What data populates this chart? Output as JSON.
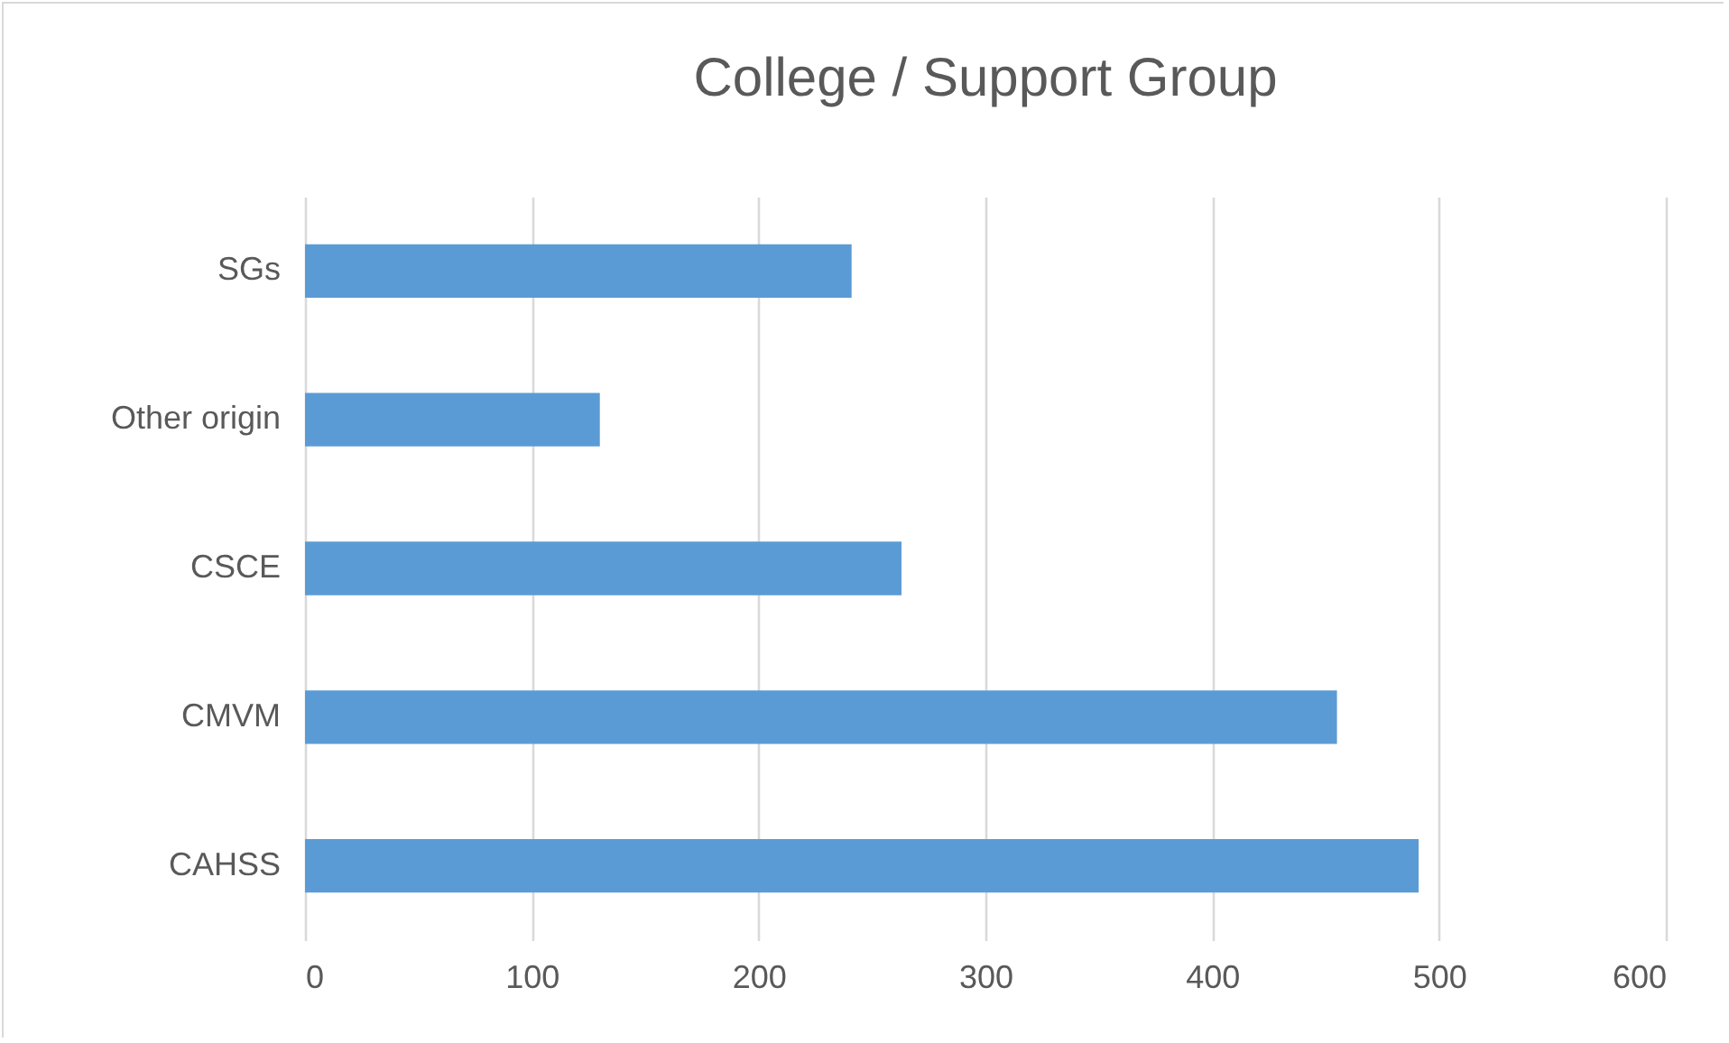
{
  "chart_data": {
    "type": "bar",
    "orientation": "horizontal",
    "title": "College / Support Group",
    "categories": [
      "SGs",
      "Other origin",
      "CSCE",
      "CMVM",
      "CAHSS"
    ],
    "values": [
      241,
      130,
      263,
      455,
      491
    ],
    "color": "#5b9bd5",
    "xlim": [
      0,
      600
    ],
    "xticks": [
      0,
      100,
      200,
      300,
      400,
      500,
      600
    ],
    "grid": "x"
  }
}
